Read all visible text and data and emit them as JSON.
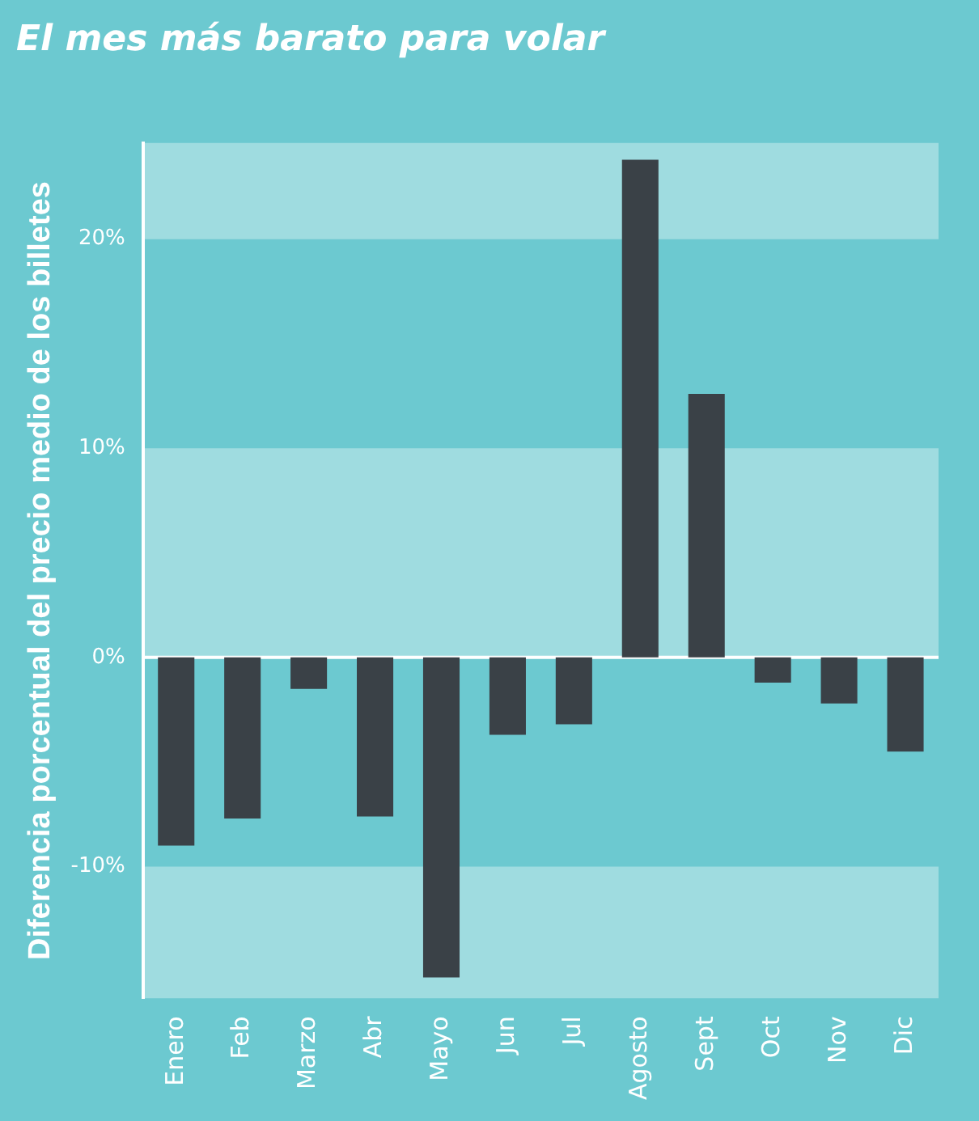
{
  "chart_data": {
    "type": "bar",
    "title": "El mes más barato para volar",
    "ylabel": "Diferencia porcentual del precio medio de los billetes",
    "categories": [
      "Enero",
      "Feb",
      "Marzo",
      "Abr",
      "Mayo",
      "Jun",
      "Jul",
      "Agosto",
      "Sept",
      "Oct",
      "Nov",
      "Dic"
    ],
    "values": [
      -9.0,
      -7.7,
      -1.5,
      -7.6,
      -15.3,
      -3.7,
      -3.2,
      23.8,
      12.6,
      -1.2,
      -2.2,
      -4.5
    ],
    "color": "#3a4147",
    "ylim": [
      -16.3,
      24.6
    ],
    "yticks": [
      {
        "value": -10,
        "label": "-10%"
      },
      {
        "value": 0,
        "label": "0%"
      },
      {
        "value": 10,
        "label": "10%"
      },
      {
        "value": 20,
        "label": "20%"
      }
    ],
    "grid": true
  }
}
